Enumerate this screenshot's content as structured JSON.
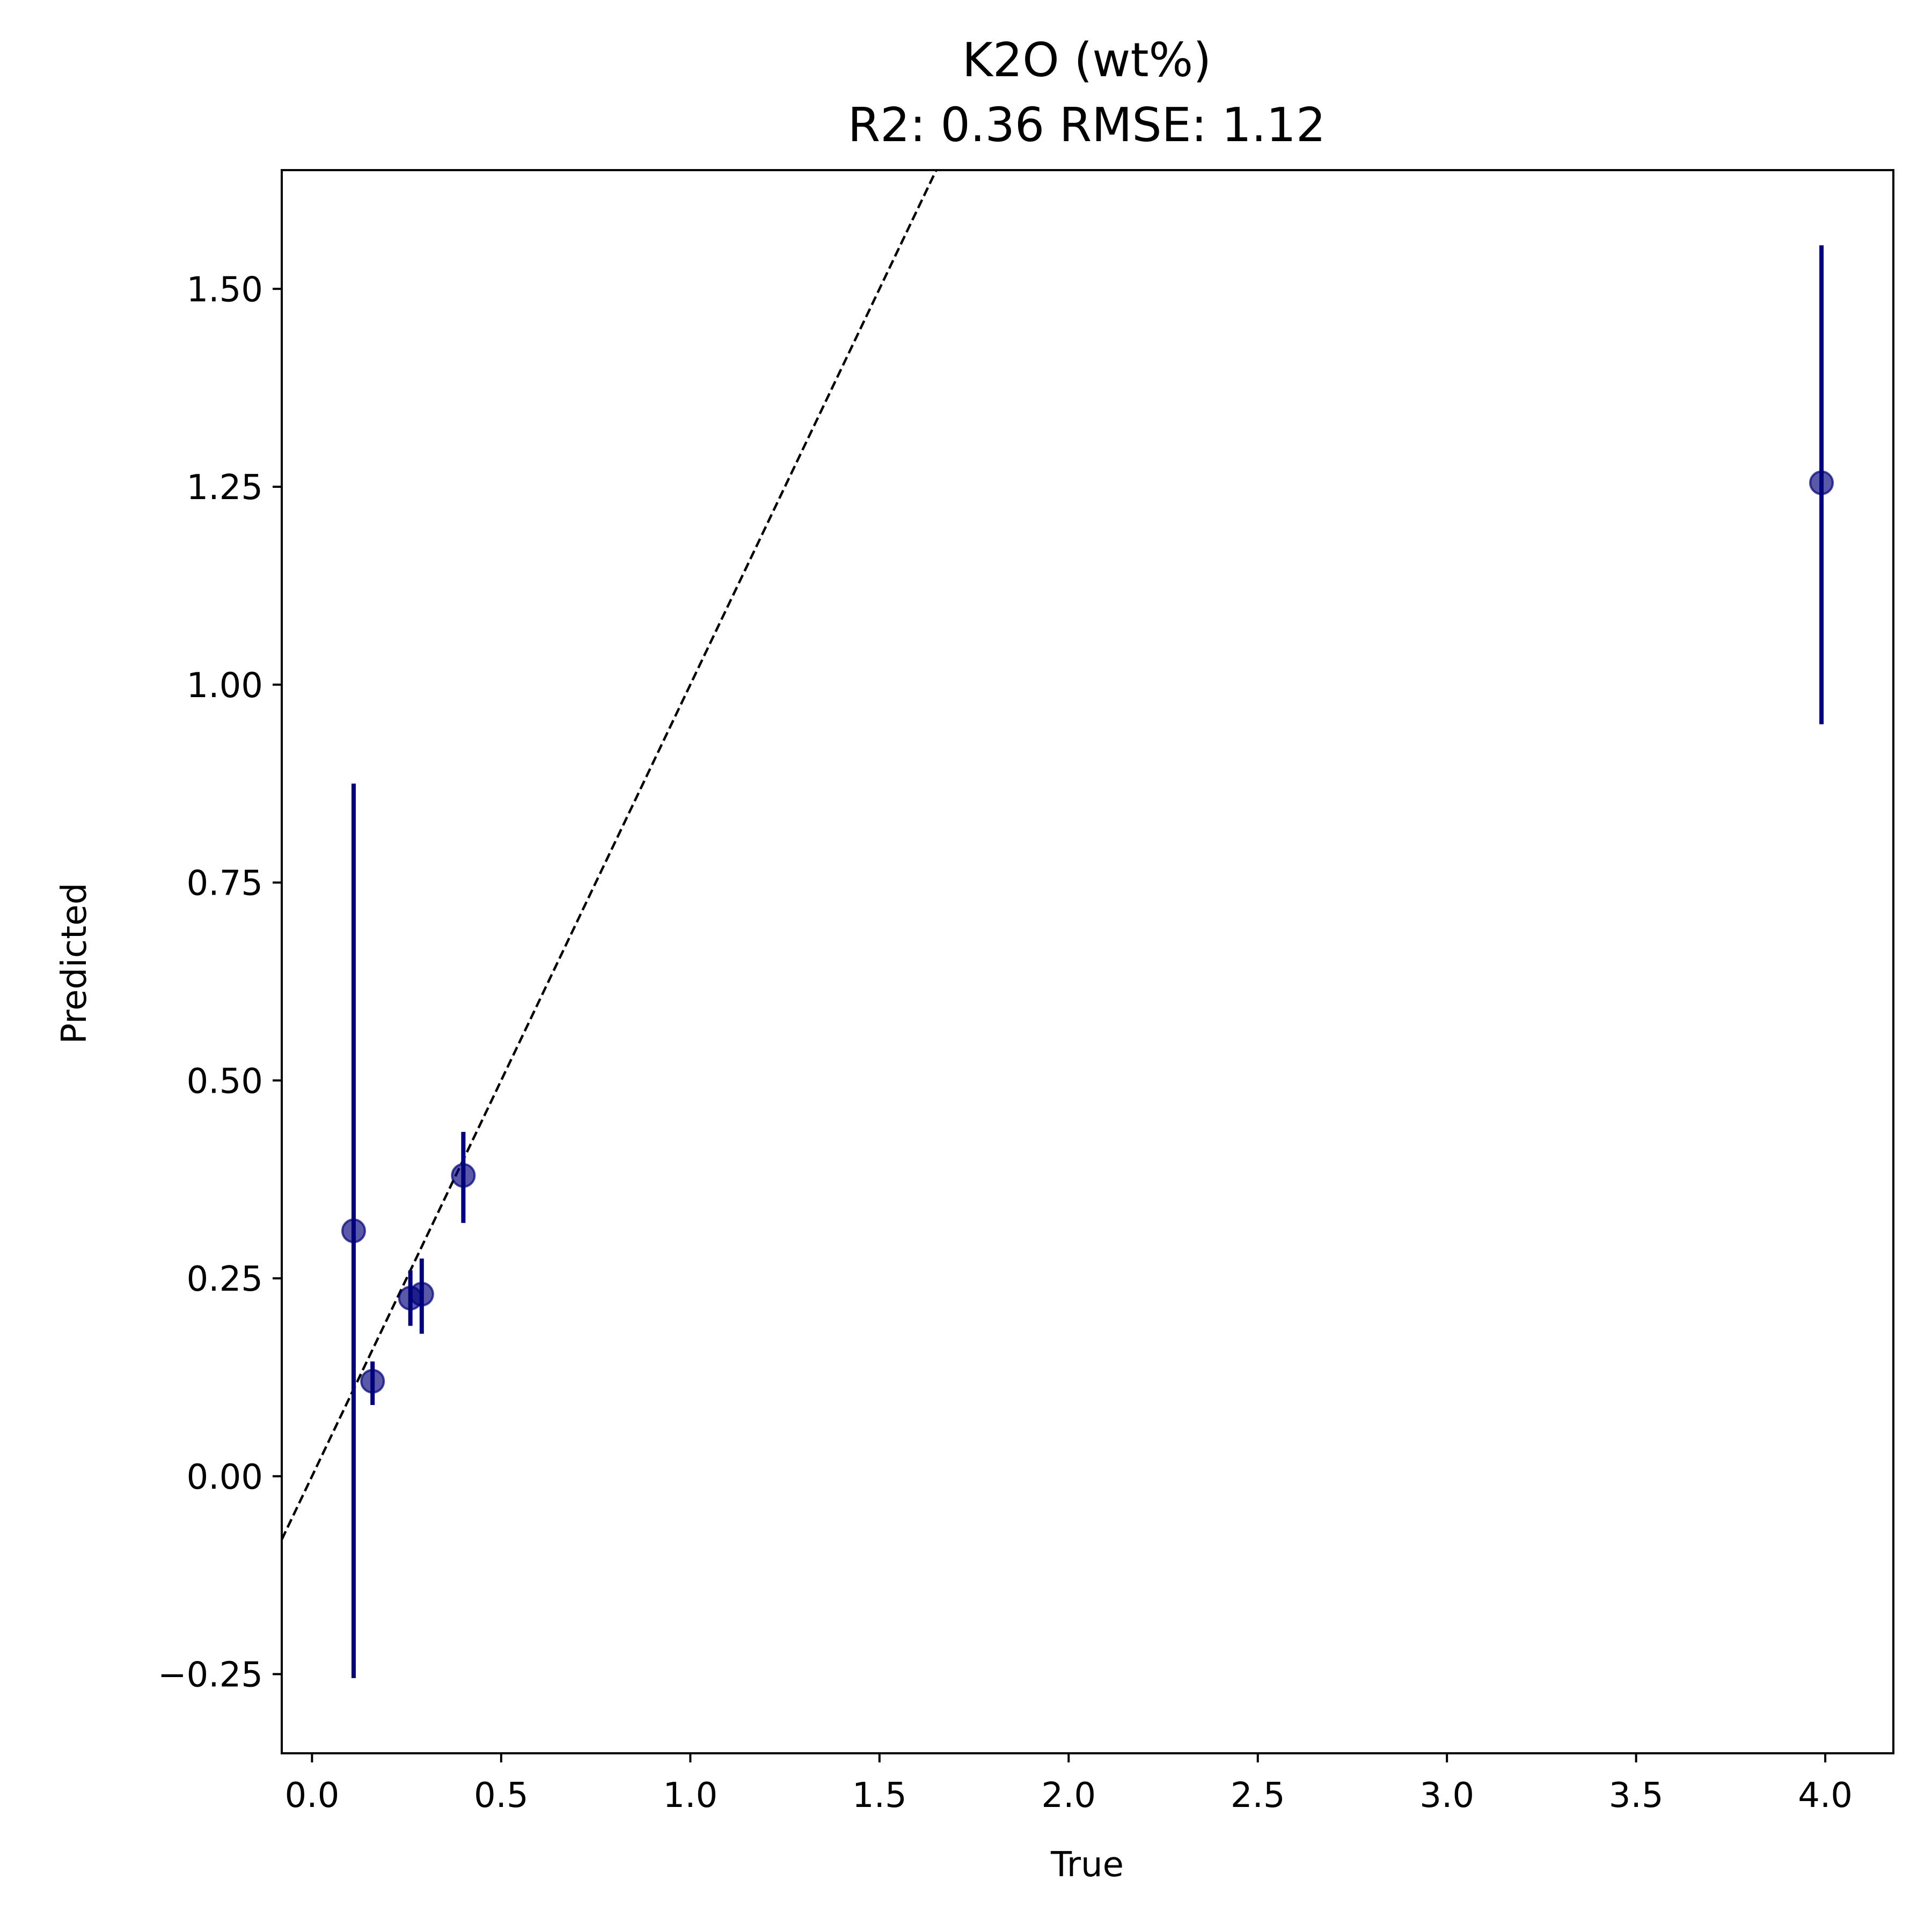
{
  "chart_data": {
    "type": "scatter",
    "title": "K2O (wt%)",
    "subtitle": "R2: 0.36    RMSE: 1.12",
    "xlabel": "True",
    "ylabel": "Predicted",
    "xlim": [
      -0.08,
      4.18
    ],
    "ylim": [
      -0.35,
      1.65
    ],
    "x_ticks": [
      0.0,
      0.5,
      1.0,
      1.5,
      2.0,
      2.5,
      3.0,
      3.5,
      4.0
    ],
    "x_tick_labels": [
      "0.0",
      "0.5",
      "1.0",
      "1.5",
      "2.0",
      "2.5",
      "3.0",
      "3.5",
      "4.0"
    ],
    "y_ticks": [
      -0.25,
      0.0,
      0.25,
      0.5,
      0.75,
      1.0,
      1.25,
      1.5
    ],
    "y_tick_labels": [
      "−0.25",
      "0.00",
      "0.25",
      "0.50",
      "0.75",
      "1.00",
      "1.25",
      "1.50"
    ],
    "grid": false,
    "reference_line": {
      "style": "dashed",
      "color": "#000000",
      "points": [
        [
          -0.08,
          -0.08
        ],
        [
          1.65,
          1.65
        ]
      ]
    },
    "marker_color": "#00007a",
    "errorbar_color": "#000080",
    "points": [
      {
        "x": 0.11,
        "y": 0.31,
        "yerr_low": -0.255,
        "yerr_high": 0.875
      },
      {
        "x": 0.16,
        "y": 0.12,
        "yerr_low": 0.09,
        "yerr_high": 0.145
      },
      {
        "x": 0.26,
        "y": 0.225,
        "yerr_low": 0.19,
        "yerr_high": 0.26
      },
      {
        "x": 0.29,
        "y": 0.23,
        "yerr_low": 0.18,
        "yerr_high": 0.275
      },
      {
        "x": 0.4,
        "y": 0.38,
        "yerr_low": 0.32,
        "yerr_high": 0.435
      },
      {
        "x": 3.99,
        "y": 1.255,
        "yerr_low": 0.95,
        "yerr_high": 1.555
      }
    ]
  }
}
